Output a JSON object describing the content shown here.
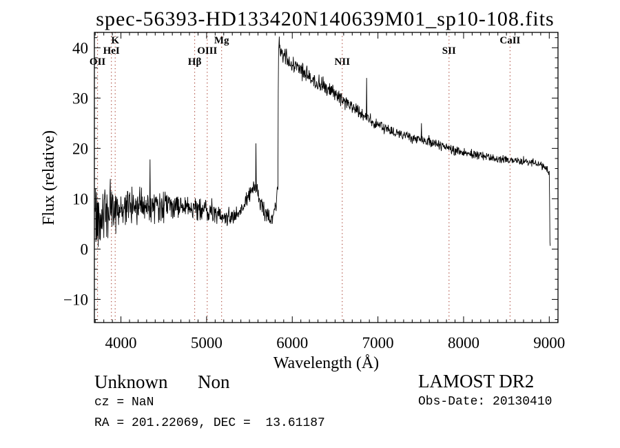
{
  "title": "spec-56393-HD133420N140639M01_sp10-108.fits",
  "annotations": {
    "class_name": "Unknown",
    "subclass": "Non",
    "cz": "cz = NaN",
    "ra_dec": "RA = 201.22069, DEC =  13.61187",
    "survey": "LAMOST DR2",
    "obs_date": "Obs-Date: 20130410"
  },
  "colors": {
    "marker_line": "#a53c2d",
    "trace": "#000000",
    "frame": "#000000"
  },
  "chart_data": {
    "type": "line",
    "title": "spec-56393-HD133420N140639M01_sp10-108.fits",
    "xlabel": "Wavelength (Å)",
    "ylabel": "Flux (relative)",
    "xlim": [
      3690,
      9102
    ],
    "ylim": [
      -14.6,
      43.05
    ],
    "x_major_ticks": [
      4000,
      5000,
      6000,
      7000,
      8000,
      9000
    ],
    "y_major_ticks": [
      -10,
      0,
      10,
      20,
      30,
      40
    ],
    "x_minor_step": 100,
    "y_minor_step": 2,
    "grid": false,
    "legend": false,
    "noise_seed": 42,
    "sample_step": 4,
    "line_markers": [
      {
        "label": "OII",
        "wavelength": 3727,
        "row": 3
      },
      {
        "label": "HeI",
        "wavelength": 3889,
        "row": 2
      },
      {
        "label": "K",
        "wavelength": 3933,
        "row": 1
      },
      {
        "label": "Hβ",
        "wavelength": 4861,
        "row": 3
      },
      {
        "label": "OIII",
        "wavelength": 5007,
        "row": 2
      },
      {
        "label": "Mg",
        "wavelength": 5175,
        "row": 1
      },
      {
        "label": "NII",
        "wavelength": 6583,
        "row": 3
      },
      {
        "label": "SII",
        "wavelength": 7830,
        "row": 2
      },
      {
        "label": "CaII",
        "wavelength": 8542,
        "row": 1
      }
    ],
    "series": [
      {
        "name": "spectrum",
        "color": "#000000",
        "anchors_format": [
          "wavelength_angstrom",
          "mean_flux",
          "noise_amplitude"
        ],
        "anchors": [
          [
            3700,
            6.0,
            11
          ],
          [
            3720,
            6.5,
            10
          ],
          [
            3760,
            7.0,
            9
          ],
          [
            3800,
            7.5,
            8
          ],
          [
            3850,
            7.5,
            7
          ],
          [
            3900,
            8.0,
            6.5
          ],
          [
            3950,
            8.0,
            6
          ],
          [
            4000,
            8.0,
            5.5
          ],
          [
            4100,
            8.2,
            5
          ],
          [
            4200,
            8.5,
            4.6
          ],
          [
            4300,
            8.5,
            4.2
          ],
          [
            4400,
            8.5,
            4.0
          ],
          [
            4500,
            8.5,
            3.6
          ],
          [
            4600,
            8.5,
            3.2
          ],
          [
            4700,
            8.4,
            2.9
          ],
          [
            4800,
            8.3,
            2.7
          ],
          [
            4900,
            8.0,
            2.5
          ],
          [
            5000,
            7.6,
            2.3
          ],
          [
            5080,
            7.0,
            2.2
          ],
          [
            5160,
            6.3,
            2.1
          ],
          [
            5240,
            5.8,
            2.0
          ],
          [
            5320,
            6.2,
            2.0
          ],
          [
            5380,
            7.5,
            2.0
          ],
          [
            5440,
            9.0,
            2.0
          ],
          [
            5500,
            11.0,
            2.0
          ],
          [
            5560,
            12.5,
            2.0
          ],
          [
            5600,
            11.0,
            2.0
          ],
          [
            5650,
            8.0,
            2.0
          ],
          [
            5700,
            6.5,
            2.0
          ],
          [
            5750,
            6.0,
            2.0
          ],
          [
            5800,
            8.0,
            2.2
          ],
          [
            5826,
            11.0,
            2.6
          ],
          [
            5833,
            14.0,
            3.0
          ],
          [
            5837,
            40.0,
            2.4
          ],
          [
            5850,
            41.0,
            2.0
          ],
          [
            5870,
            39.5,
            2.2
          ],
          [
            5900,
            38.5,
            2.2
          ],
          [
            5950,
            37.5,
            2.2
          ],
          [
            6000,
            36.8,
            2.2
          ],
          [
            6050,
            36.2,
            2.0
          ],
          [
            6100,
            35.6,
            2.2
          ],
          [
            6150,
            35.0,
            2.0
          ],
          [
            6200,
            34.4,
            2.0
          ],
          [
            6250,
            33.8,
            2.0
          ],
          [
            6300,
            33.2,
            1.9
          ],
          [
            6350,
            32.6,
            1.9
          ],
          [
            6400,
            32.0,
            1.8
          ],
          [
            6450,
            31.4,
            1.8
          ],
          [
            6500,
            30.8,
            1.8
          ],
          [
            6560,
            30.0,
            1.8
          ],
          [
            6600,
            29.4,
            1.7
          ],
          [
            6650,
            28.8,
            1.6
          ],
          [
            6700,
            28.2,
            1.6
          ],
          [
            6750,
            27.6,
            1.5
          ],
          [
            6800,
            27.0,
            1.5
          ],
          [
            6860,
            26.4,
            1.5
          ],
          [
            6900,
            25.8,
            1.5
          ],
          [
            6950,
            25.2,
            1.4
          ],
          [
            7000,
            24.7,
            1.4
          ],
          [
            7100,
            23.8,
            1.4
          ],
          [
            7200,
            23.2,
            1.3
          ],
          [
            7300,
            22.6,
            1.3
          ],
          [
            7400,
            22.0,
            1.3
          ],
          [
            7500,
            21.6,
            1.3
          ],
          [
            7600,
            21.2,
            1.2
          ],
          [
            7700,
            20.7,
            1.2
          ],
          [
            7800,
            20.2,
            1.2
          ],
          [
            7900,
            19.7,
            1.2
          ],
          [
            8000,
            19.3,
            1.2
          ],
          [
            8100,
            18.9,
            1.1
          ],
          [
            8200,
            18.5,
            1.1
          ],
          [
            8300,
            18.2,
            1.1
          ],
          [
            8400,
            17.9,
            1.1
          ],
          [
            8500,
            17.7,
            1.0
          ],
          [
            8600,
            17.5,
            1.0
          ],
          [
            8700,
            17.4,
            1.0
          ],
          [
            8800,
            17.2,
            1.0
          ],
          [
            8900,
            16.8,
            1.0
          ],
          [
            8960,
            16.2,
            0.9
          ],
          [
            9000,
            15.0,
            0.8
          ],
          [
            9004,
            10.0,
            0.6
          ],
          [
            9008,
            1.5,
            0.5
          ],
          [
            9012,
            0.4,
            0.3
          ]
        ],
        "spikes_format": [
          "wavelength_angstrom",
          "peak_flux"
        ],
        "spikes": [
          [
            4340,
            17.8
          ],
          [
            5577,
            21.0
          ],
          [
            6868,
            34.0
          ],
          [
            7507,
            25.0
          ]
        ]
      }
    ]
  }
}
